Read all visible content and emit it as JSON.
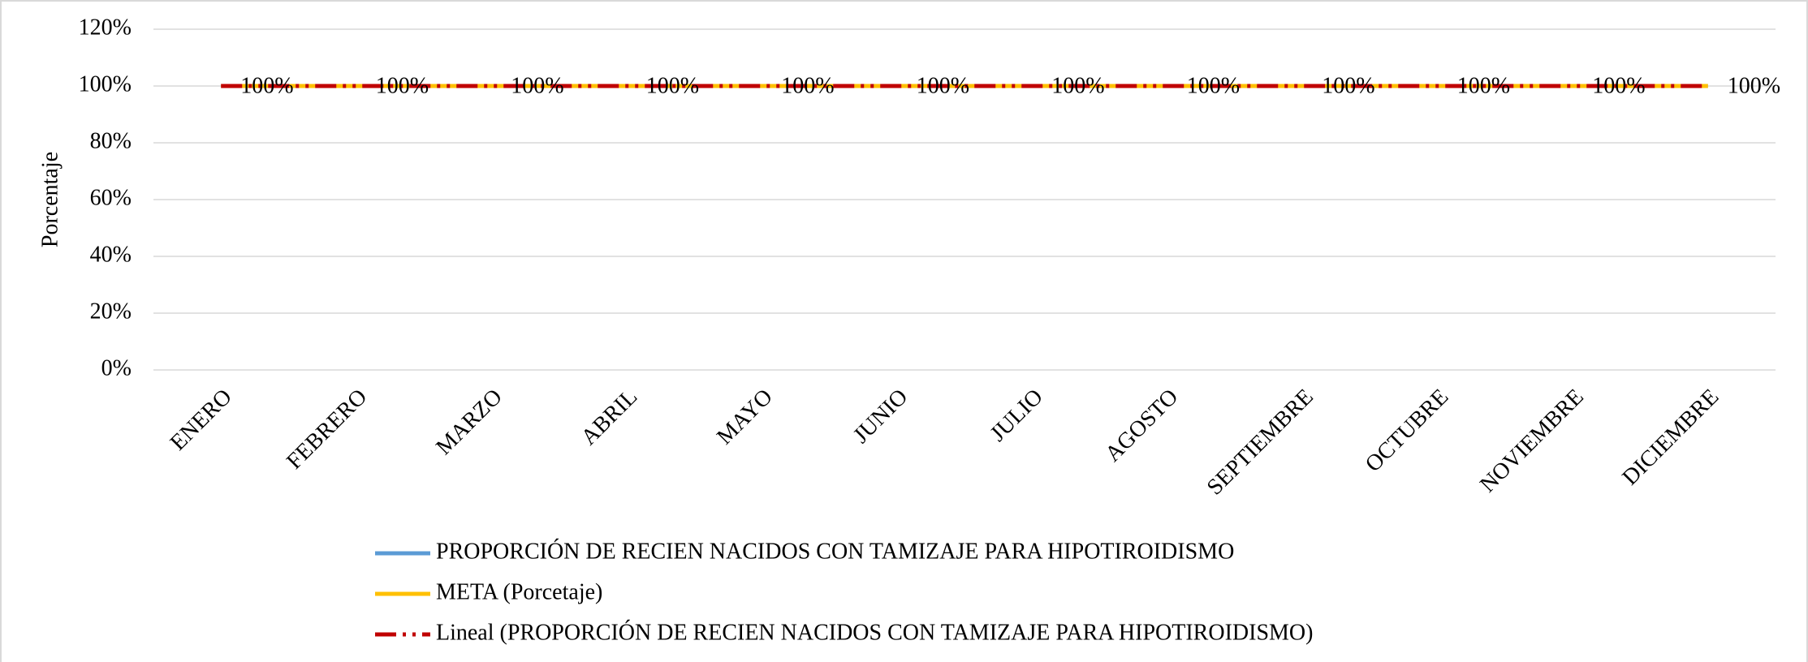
{
  "chart_data": {
    "type": "line",
    "y_label": "Porcentaje",
    "categories": [
      "ENERO",
      "FEBRERO",
      "MARZO",
      "ABRIL",
      "MAYO",
      "JUNIO",
      "JULIO",
      "AGOSTO",
      "SEPTIEMBRE",
      "OCTUBRE",
      "NOVIEMBRE",
      "DICIEMBRE"
    ],
    "series": [
      {
        "name": "PROPORCIÓN DE RECIEN NACIDOS CON TAMIZAJE PARA HIPOTIROIDISMO",
        "color": "#5b9bd5",
        "style": "solid",
        "values": [
          100,
          100,
          100,
          100,
          100,
          100,
          100,
          100,
          100,
          100,
          100,
          100
        ],
        "value_labels": [
          "100%",
          "100%",
          "100%",
          "100%",
          "100%",
          "100%",
          "100%",
          "100%",
          "100%",
          "100%",
          "100%",
          "100%"
        ]
      },
      {
        "name": "META (Porcetaje)",
        "color": "#ffc000",
        "style": "solid",
        "values": [
          100,
          100,
          100,
          100,
          100,
          100,
          100,
          100,
          100,
          100,
          100,
          100
        ]
      },
      {
        "name": "Lineal (PROPORCIÓN DE RECIEN NACIDOS CON TAMIZAJE PARA HIPOTIROIDISMO)",
        "color": "#c00000",
        "style": "dashdot",
        "values": [
          100,
          100,
          100,
          100,
          100,
          100,
          100,
          100,
          100,
          100,
          100,
          100
        ]
      }
    ],
    "ylim": [
      0,
      120
    ],
    "yticks": [
      {
        "value": 0,
        "label": "0%"
      },
      {
        "value": 20,
        "label": "20%"
      },
      {
        "value": 40,
        "label": "40%"
      },
      {
        "value": 60,
        "label": "60%"
      },
      {
        "value": 80,
        "label": "80%"
      },
      {
        "value": 100,
        "label": "100%"
      },
      {
        "value": 120,
        "label": "120%"
      }
    ],
    "grid": true,
    "legend": "bottom"
  }
}
